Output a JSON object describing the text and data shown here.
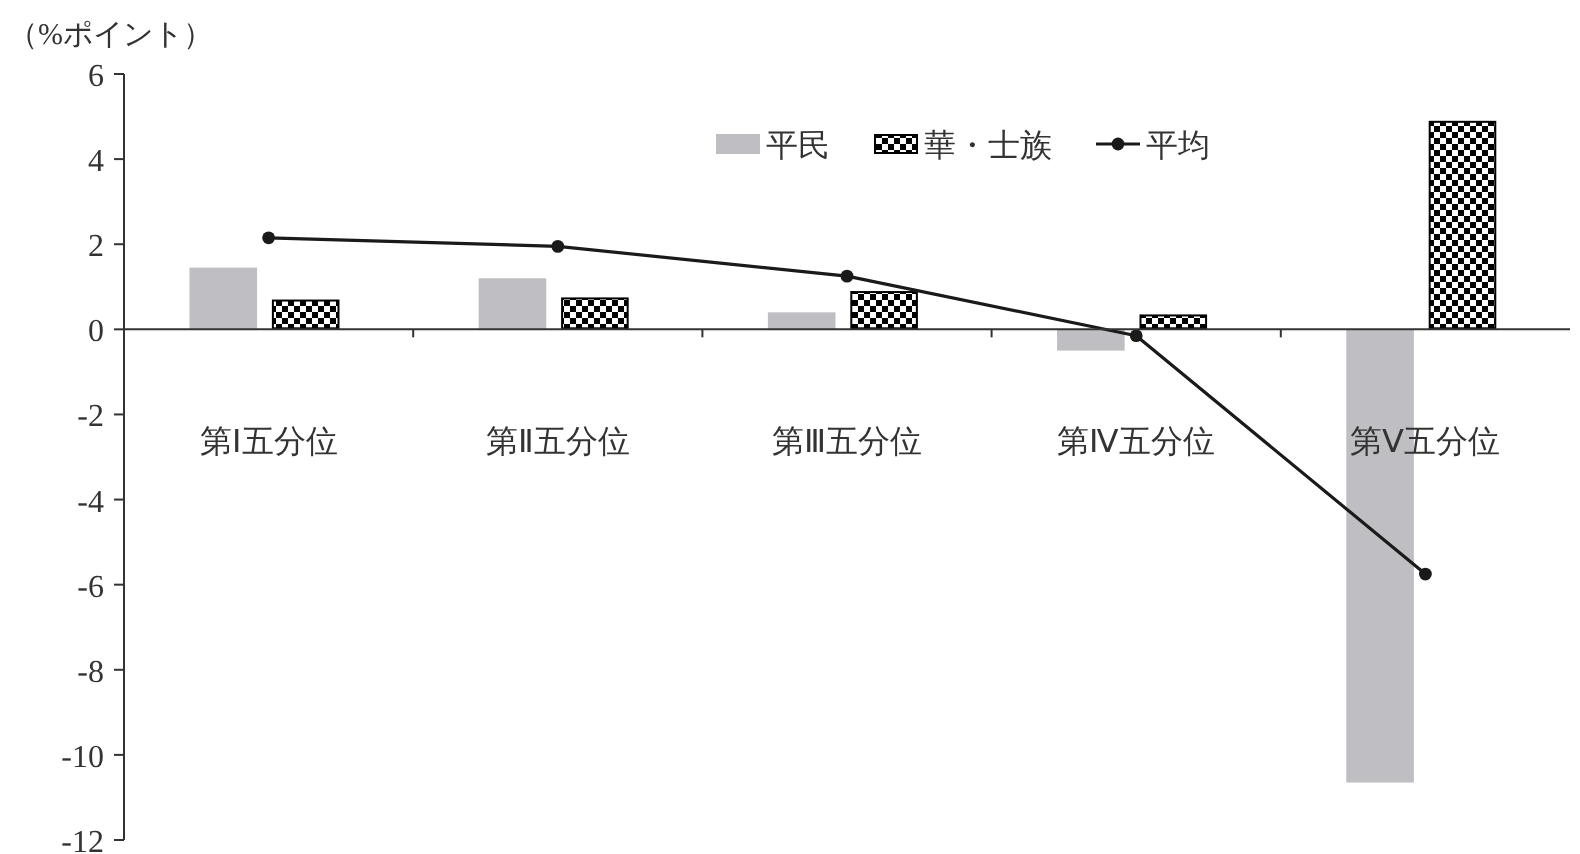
{
  "chart_data": {
    "type": "bar",
    "ylabel": "（%ポイント）",
    "categories": [
      "第Ⅰ五分位",
      "第Ⅱ五分位",
      "第Ⅲ五分位",
      "第Ⅳ五分位",
      "第Ⅴ五分位"
    ],
    "series": [
      {
        "name": "平民",
        "color": "#bfbfc3",
        "values": [
          1.45,
          1.2,
          0.4,
          -0.5,
          -10.65
        ]
      },
      {
        "name": "華・士族",
        "color": "#000000",
        "values": [
          0.7,
          0.75,
          0.9,
          0.35,
          4.9
        ]
      },
      {
        "name": "平均",
        "type": "line",
        "color": "#1a1a1a",
        "marker": "circle",
        "values": [
          2.15,
          1.95,
          1.25,
          -0.15,
          -5.75
        ]
      }
    ],
    "ylim": [
      -12,
      6
    ],
    "yticks": [
      -12,
      -10,
      -8,
      -6,
      -4,
      -2,
      0,
      2,
      4,
      6
    ],
    "legend": "top"
  }
}
